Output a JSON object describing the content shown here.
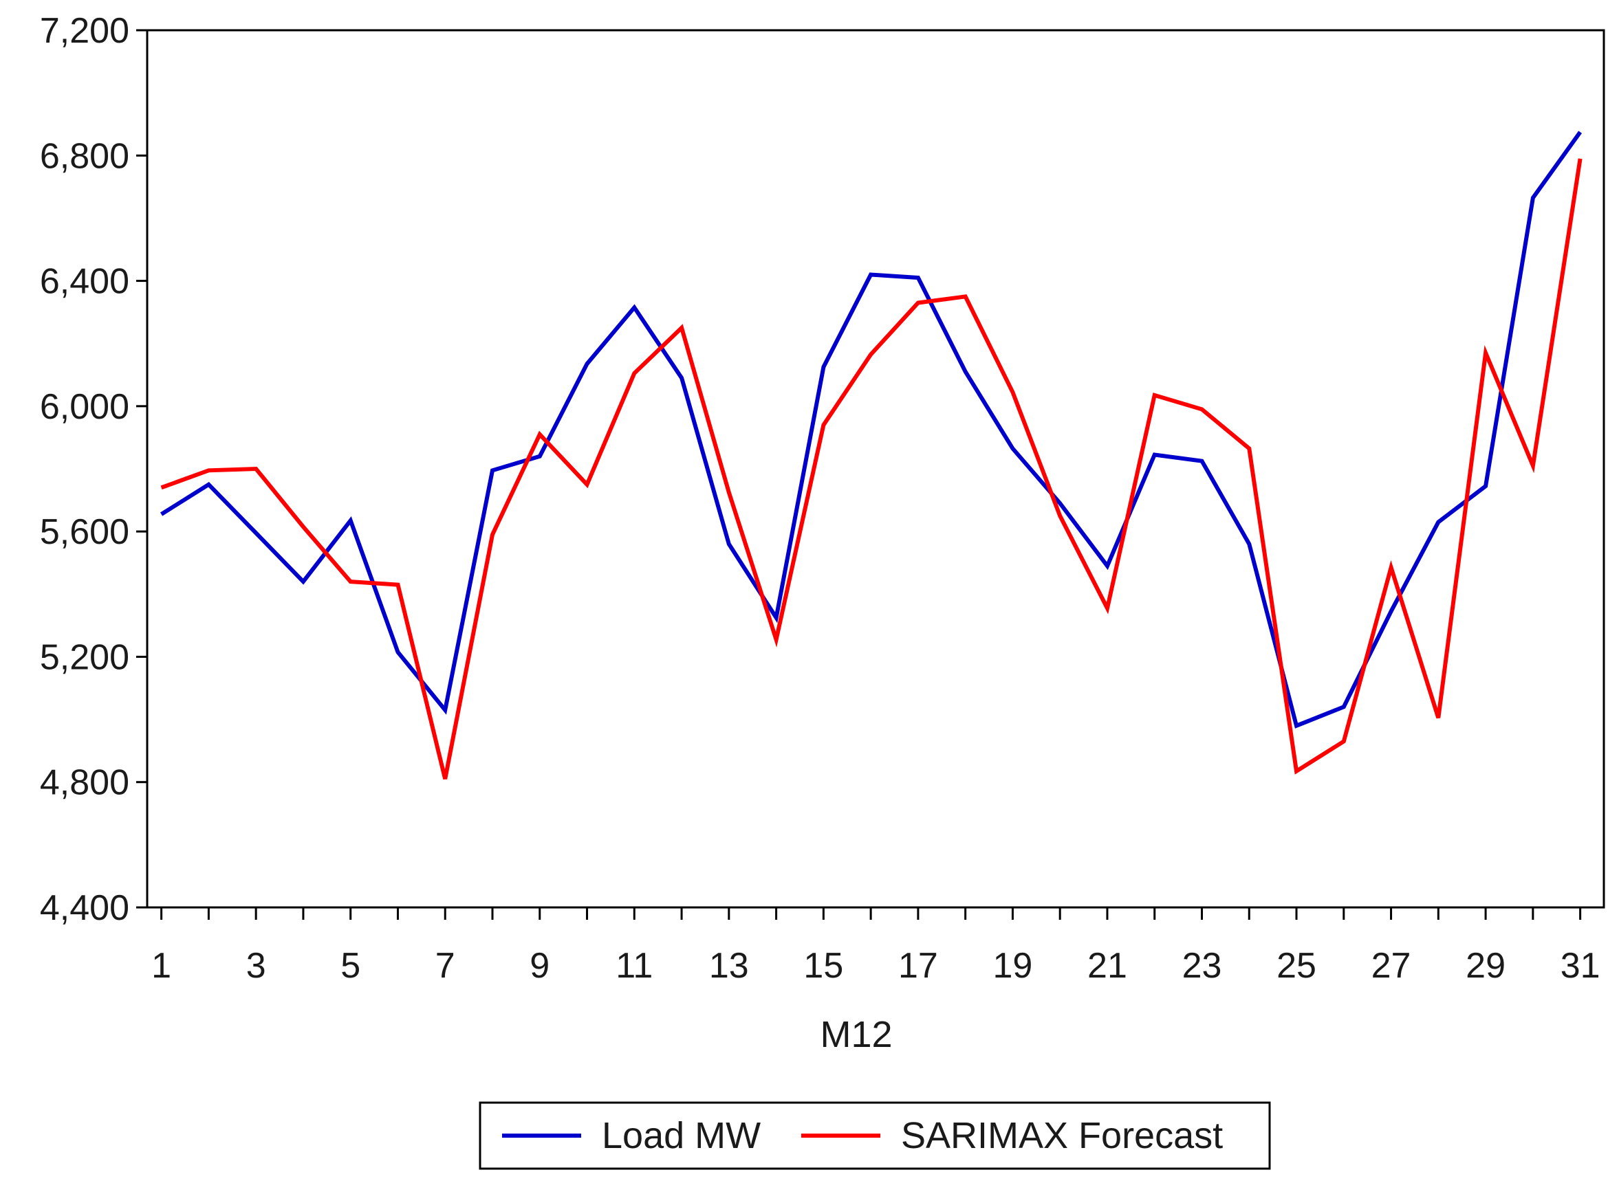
{
  "chart_data": {
    "type": "line",
    "title": "",
    "xlabel": "M12",
    "ylabel": "",
    "xlim": [
      0.7,
      31.5
    ],
    "ylim": [
      4400,
      7200
    ],
    "x_tick_labels": [
      "1",
      "3",
      "5",
      "7",
      "9",
      "11",
      "13",
      "15",
      "17",
      "19",
      "21",
      "23",
      "25",
      "27",
      "29",
      "31"
    ],
    "y_tick_labels": [
      "4,400",
      "4,800",
      "5,200",
      "5,600",
      "6,000",
      "6,400",
      "6,800",
      "7,200"
    ],
    "x_ticks": [
      1,
      3,
      5,
      7,
      9,
      11,
      13,
      15,
      17,
      19,
      21,
      23,
      25,
      27,
      29,
      31
    ],
    "x_minor_ticks": [
      2,
      4,
      6,
      8,
      10,
      12,
      14,
      16,
      18,
      20,
      22,
      24,
      26,
      28,
      30
    ],
    "y_ticks": [
      4400,
      4800,
      5200,
      5600,
      6000,
      6400,
      6800,
      7200
    ],
    "grid": false,
    "legend_position": "bottom-center",
    "x": [
      1,
      2,
      3,
      4,
      5,
      6,
      7,
      8,
      9,
      10,
      11,
      12,
      13,
      14,
      15,
      16,
      17,
      18,
      19,
      20,
      21,
      22,
      23,
      24,
      25,
      26,
      27,
      28,
      29,
      30,
      31
    ],
    "series": [
      {
        "name": "Load MW",
        "color": "#0000cc",
        "values": [
          5655,
          5750,
          5595,
          5440,
          5635,
          5215,
          5030,
          5795,
          5840,
          6135,
          6315,
          6090,
          5560,
          5325,
          6125,
          6420,
          6410,
          6110,
          5865,
          5690,
          5490,
          5845,
          5825,
          5560,
          4980,
          5040,
          5345,
          5630,
          5745,
          6665,
          6875
        ]
      },
      {
        "name": "SARIMAX Forecast",
        "color": "#ff0000",
        "values": [
          5740,
          5795,
          5800,
          5615,
          5440,
          5430,
          4810,
          5590,
          5910,
          5750,
          6105,
          6250,
          5725,
          5255,
          5940,
          6165,
          6330,
          6350,
          6045,
          5650,
          5355,
          6035,
          5990,
          5865,
          4835,
          4930,
          5485,
          5005,
          6170,
          5810,
          6790
        ]
      }
    ]
  }
}
